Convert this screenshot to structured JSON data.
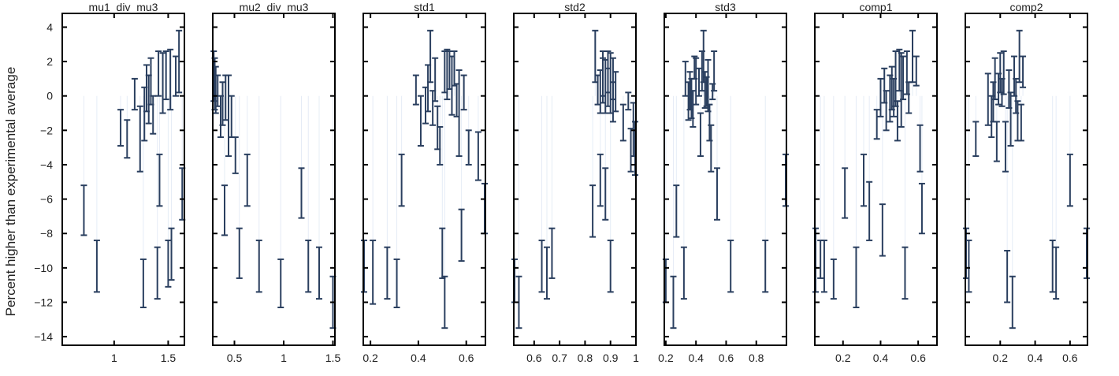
{
  "chart_data": {
    "type": "errorbar_panels",
    "ylabel": "Percent higher than experimental average",
    "ylim": [
      -14.5,
      4.8
    ],
    "yticks": [
      4,
      2,
      0,
      -2,
      -4,
      -6,
      -8,
      -10,
      -12,
      -14
    ],
    "ytick_labels": [
      "4",
      "2",
      "0",
      "−2",
      "−4",
      "−6",
      "−8",
      "−10",
      "−12",
      "−14"
    ],
    "grid": false,
    "bar_color": "#2a3f5f",
    "stem_color": "#e5ecf6",
    "panels": [
      {
        "title": "mu1_div_mu3",
        "xlim": [
          0.52,
          1.65
        ],
        "xticks": [
          1,
          1.5
        ],
        "xtick_labels": [
          "1",
          "1.5"
        ],
        "bars": [
          {
            "x": 0.72,
            "low": -8.1,
            "high": -5.2
          },
          {
            "x": 0.84,
            "low": -11.4,
            "high": -8.4
          },
          {
            "x": 1.06,
            "low": -2.9,
            "high": -0.8
          },
          {
            "x": 1.12,
            "low": -3.6,
            "high": -1.4
          },
          {
            "x": 1.19,
            "low": -0.8,
            "high": 1.0
          },
          {
            "x": 1.24,
            "low": -4.4,
            "high": -0.6
          },
          {
            "x": 1.27,
            "low": -12.3,
            "high": -9.5
          },
          {
            "x": 1.28,
            "low": -2.6,
            "high": 0.5
          },
          {
            "x": 1.3,
            "low": -0.9,
            "high": 1.8
          },
          {
            "x": 1.32,
            "low": -1.6,
            "high": 1.2
          },
          {
            "x": 1.34,
            "low": -0.5,
            "high": 2.2
          },
          {
            "x": 1.36,
            "low": -2.2,
            "high": 0.0
          },
          {
            "x": 1.4,
            "low": -11.8,
            "high": -8.8
          },
          {
            "x": 1.42,
            "low": -6.4,
            "high": -3.4
          },
          {
            "x": 1.41,
            "low": 0.0,
            "high": 2.6
          },
          {
            "x": 1.45,
            "low": -1.0,
            "high": 2.5
          },
          {
            "x": 1.48,
            "low": -0.2,
            "high": 2.6
          },
          {
            "x": 1.5,
            "low": -11.1,
            "high": -8.4
          },
          {
            "x": 1.52,
            "low": -0.8,
            "high": 2.7
          },
          {
            "x": 1.53,
            "low": -10.7,
            "high": -7.7
          },
          {
            "x": 1.57,
            "low": 0.0,
            "high": 2.3
          },
          {
            "x": 1.6,
            "low": 0.2,
            "high": 3.8
          },
          {
            "x": 1.63,
            "low": -7.2,
            "high": -4.2
          }
        ]
      },
      {
        "title": "mu2_div_mu3",
        "xlim": [
          0.28,
          1.52
        ],
        "xticks": [
          0.5,
          1,
          1.5
        ],
        "xtick_labels": [
          "0.5",
          "1",
          "1.5"
        ],
        "bars": [
          {
            "x": 0.29,
            "low": -0.3,
            "high": 2.6
          },
          {
            "x": 0.3,
            "low": -0.8,
            "high": 2.2
          },
          {
            "x": 0.31,
            "low": -1.0,
            "high": 1.7
          },
          {
            "x": 0.33,
            "low": -0.6,
            "high": 1.2
          },
          {
            "x": 0.36,
            "low": -2.4,
            "high": 0.0
          },
          {
            "x": 0.38,
            "low": -1.7,
            "high": 0.8
          },
          {
            "x": 0.4,
            "low": -8.1,
            "high": -5.2
          },
          {
            "x": 0.41,
            "low": -1.4,
            "high": 1.2
          },
          {
            "x": 0.44,
            "low": -3.5,
            "high": 1.2
          },
          {
            "x": 0.47,
            "low": -2.4,
            "high": 0.0
          },
          {
            "x": 0.51,
            "low": -4.5,
            "high": -2.4
          },
          {
            "x": 0.55,
            "low": -10.6,
            "high": -7.7
          },
          {
            "x": 0.63,
            "low": -6.4,
            "high": -3.4
          },
          {
            "x": 0.75,
            "low": -11.4,
            "high": -8.4
          },
          {
            "x": 0.97,
            "low": -12.3,
            "high": -9.5
          },
          {
            "x": 1.18,
            "low": -7.1,
            "high": -4.2
          },
          {
            "x": 1.25,
            "low": -11.4,
            "high": -8.4
          },
          {
            "x": 1.36,
            "low": -11.8,
            "high": -8.8
          },
          {
            "x": 1.5,
            "low": -13.5,
            "high": -10.5
          }
        ]
      },
      {
        "title": "std1",
        "xlim": [
          0.17,
          0.68
        ],
        "xticks": [
          0.2,
          0.4,
          0.6
        ],
        "xtick_labels": [
          "0.2",
          "0.4",
          "0.6"
        ],
        "bars": [
          {
            "x": 0.17,
            "low": -11.4,
            "high": -8.4
          },
          {
            "x": 0.21,
            "low": -12.1,
            "high": -8.4
          },
          {
            "x": 0.27,
            "low": -11.8,
            "high": -8.8
          },
          {
            "x": 0.31,
            "low": -12.3,
            "high": -9.5
          },
          {
            "x": 0.33,
            "low": -6.4,
            "high": -3.4
          },
          {
            "x": 0.39,
            "low": -0.5,
            "high": 1.2
          },
          {
            "x": 0.41,
            "low": -2.9,
            "high": 0.0
          },
          {
            "x": 0.43,
            "low": -1.6,
            "high": 0.5
          },
          {
            "x": 0.44,
            "low": -0.9,
            "high": 1.8
          },
          {
            "x": 0.45,
            "low": 0.8,
            "high": 3.8
          },
          {
            "x": 0.46,
            "low": -1.7,
            "high": 0.3
          },
          {
            "x": 0.47,
            "low": -0.3,
            "high": 2.2
          },
          {
            "x": 0.48,
            "low": -3.1,
            "high": -0.6
          },
          {
            "x": 0.49,
            "low": -4.0,
            "high": -1.8
          },
          {
            "x": 0.5,
            "low": -10.6,
            "high": -7.7
          },
          {
            "x": 0.51,
            "low": -13.5,
            "high": -10.5
          },
          {
            "x": 0.51,
            "low": 0.2,
            "high": 2.6
          },
          {
            "x": 0.52,
            "low": -0.2,
            "high": 2.7
          },
          {
            "x": 0.53,
            "low": 0.4,
            "high": 2.6
          },
          {
            "x": 0.54,
            "low": -1.1,
            "high": 2.3
          },
          {
            "x": 0.55,
            "low": 0.6,
            "high": 2.6
          },
          {
            "x": 0.56,
            "low": -1.2,
            "high": 0.7
          },
          {
            "x": 0.57,
            "low": -3.5,
            "high": 1.5
          },
          {
            "x": 0.58,
            "low": -9.6,
            "high": -6.6
          },
          {
            "x": 0.59,
            "low": -0.8,
            "high": 1.2
          },
          {
            "x": 0.61,
            "low": -4.0,
            "high": -2.0
          },
          {
            "x": 0.65,
            "low": -4.9,
            "high": -2.1
          },
          {
            "x": 0.68,
            "low": -8.0,
            "high": -5.1
          }
        ]
      },
      {
        "title": "std2",
        "xlim": [
          0.52,
          1.0
        ],
        "xticks": [
          0.6,
          0.7,
          0.8,
          0.9,
          1
        ],
        "xtick_labels": [
          "0.6",
          "0.7",
          "0.8",
          "0.9",
          "1"
        ],
        "bars": [
          {
            "x": 0.52,
            "low": -12.0,
            "high": -9.5
          },
          {
            "x": 0.54,
            "low": -13.5,
            "high": -10.5
          },
          {
            "x": 0.63,
            "low": -11.4,
            "high": -8.4
          },
          {
            "x": 0.65,
            "low": -11.8,
            "high": -8.8
          },
          {
            "x": 0.67,
            "low": -10.6,
            "high": -7.7
          },
          {
            "x": 0.83,
            "low": -8.2,
            "high": -5.2
          },
          {
            "x": 0.84,
            "low": 0.8,
            "high": 3.8
          },
          {
            "x": 0.85,
            "low": -0.5,
            "high": 1.2
          },
          {
            "x": 0.86,
            "low": -1.0,
            "high": 1.5
          },
          {
            "x": 0.86,
            "low": -6.4,
            "high": -3.4
          },
          {
            "x": 0.87,
            "low": -0.4,
            "high": 2.2
          },
          {
            "x": 0.87,
            "low": 0.0,
            "high": 2.6
          },
          {
            "x": 0.88,
            "low": -1.0,
            "high": 2.1
          },
          {
            "x": 0.88,
            "low": -7.2,
            "high": -4.2
          },
          {
            "x": 0.89,
            "low": 0.2,
            "high": 2.6
          },
          {
            "x": 0.89,
            "low": -0.6,
            "high": 1.6
          },
          {
            "x": 0.9,
            "low": -11.4,
            "high": -8.4
          },
          {
            "x": 0.9,
            "low": -1.0,
            "high": 2.5
          },
          {
            "x": 0.91,
            "low": -0.2,
            "high": 2.2
          },
          {
            "x": 0.91,
            "low": -1.5,
            "high": 0.8
          },
          {
            "x": 0.92,
            "low": -0.9,
            "high": 1.4
          },
          {
            "x": 0.95,
            "low": -2.6,
            "high": -0.5
          },
          {
            "x": 0.97,
            "low": -0.8,
            "high": 0.2
          },
          {
            "x": 0.98,
            "low": -4.4,
            "high": -1.9
          },
          {
            "x": 0.99,
            "low": -3.5,
            "high": -0.4
          },
          {
            "x": 1.0,
            "low": -4.6,
            "high": -1.5
          }
        ]
      },
      {
        "title": "std3",
        "xlim": [
          0.19,
          1.0
        ],
        "xticks": [
          0.2,
          0.4,
          0.6,
          0.8
        ],
        "xtick_labels": [
          "0.2",
          "0.4",
          "0.6",
          "0.8"
        ],
        "bars": [
          {
            "x": 0.2,
            "low": -12.0,
            "high": -9.5
          },
          {
            "x": 0.25,
            "low": -13.5,
            "high": -10.5
          },
          {
            "x": 0.27,
            "low": -8.2,
            "high": -5.2
          },
          {
            "x": 0.32,
            "low": -11.8,
            "high": -8.8
          },
          {
            "x": 0.33,
            "low": 0.0,
            "high": 2.0
          },
          {
            "x": 0.35,
            "low": -1.4,
            "high": 0.8
          },
          {
            "x": 0.36,
            "low": -0.8,
            "high": 1.4
          },
          {
            "x": 0.37,
            "low": -1.3,
            "high": 1.0
          },
          {
            "x": 0.38,
            "low": -1.8,
            "high": 0.3
          },
          {
            "x": 0.39,
            "low": 1.0,
            "high": 2.3
          },
          {
            "x": 0.4,
            "low": -0.5,
            "high": 2.2
          },
          {
            "x": 0.42,
            "low": 0.0,
            "high": 1.6
          },
          {
            "x": 0.43,
            "low": -3.5,
            "high": -1.0
          },
          {
            "x": 0.44,
            "low": 0.3,
            "high": 2.6
          },
          {
            "x": 0.45,
            "low": 0.8,
            "high": 3.8
          },
          {
            "x": 0.46,
            "low": -0.7,
            "high": 1.4
          },
          {
            "x": 0.47,
            "low": -0.6,
            "high": 1.1
          },
          {
            "x": 0.48,
            "low": -0.9,
            "high": 2.1
          },
          {
            "x": 0.49,
            "low": -2.6,
            "high": -0.5
          },
          {
            "x": 0.5,
            "low": -4.4,
            "high": -1.7
          },
          {
            "x": 0.51,
            "low": -0.2,
            "high": 0.7
          },
          {
            "x": 0.52,
            "low": 0.3,
            "high": 2.6
          },
          {
            "x": 0.54,
            "low": -7.2,
            "high": -4.2
          },
          {
            "x": 0.63,
            "low": -11.4,
            "high": -8.4
          },
          {
            "x": 0.86,
            "low": -11.4,
            "high": -8.4
          },
          {
            "x": 1.0,
            "low": -6.4,
            "high": -3.4
          }
        ]
      },
      {
        "title": "comp1",
        "xlim": [
          0.05,
          0.7
        ],
        "xticks": [
          0.2,
          0.4,
          0.6
        ],
        "xtick_labels": [
          "0.2",
          "0.4",
          "0.6"
        ],
        "bars": [
          {
            "x": 0.05,
            "low": -11.4,
            "high": -7.7
          },
          {
            "x": 0.08,
            "low": -10.6,
            "high": -8.4
          },
          {
            "x": 0.1,
            "low": -11.4,
            "high": -8.4
          },
          {
            "x": 0.15,
            "low": -11.8,
            "high": -9.5
          },
          {
            "x": 0.21,
            "low": -7.1,
            "high": -4.2
          },
          {
            "x": 0.27,
            "low": -12.3,
            "high": -8.8
          },
          {
            "x": 0.31,
            "low": -6.4,
            "high": -3.4
          },
          {
            "x": 0.34,
            "low": -8.4,
            "high": -5.0
          },
          {
            "x": 0.38,
            "low": -2.5,
            "high": -0.8
          },
          {
            "x": 0.4,
            "low": -1.2,
            "high": 1.0
          },
          {
            "x": 0.41,
            "low": -9.3,
            "high": -6.3
          },
          {
            "x": 0.42,
            "low": -0.4,
            "high": 1.6
          },
          {
            "x": 0.43,
            "low": -2.0,
            "high": 0.3
          },
          {
            "x": 0.45,
            "low": -1.5,
            "high": 1.2
          },
          {
            "x": 0.46,
            "low": -0.8,
            "high": 1.7
          },
          {
            "x": 0.47,
            "low": -1.2,
            "high": 1.0
          },
          {
            "x": 0.48,
            "low": -0.6,
            "high": 2.6
          },
          {
            "x": 0.49,
            "low": -2.6,
            "high": -0.3
          },
          {
            "x": 0.5,
            "low": 0.3,
            "high": 2.7
          },
          {
            "x": 0.51,
            "low": -1.8,
            "high": 2.5
          },
          {
            "x": 0.52,
            "low": -0.2,
            "high": 2.3
          },
          {
            "x": 0.53,
            "low": -11.8,
            "high": -8.8
          },
          {
            "x": 0.54,
            "low": 0.1,
            "high": 2.6
          },
          {
            "x": 0.55,
            "low": -1.0,
            "high": 0.8
          },
          {
            "x": 0.57,
            "low": 0.8,
            "high": 3.8
          },
          {
            "x": 0.59,
            "low": 0.6,
            "high": 2.3
          },
          {
            "x": 0.61,
            "low": -4.4,
            "high": -1.7
          },
          {
            "x": 0.62,
            "low": -8.0,
            "high": -5.1
          }
        ]
      },
      {
        "title": "comp2",
        "xlim": [
          0.0,
          0.7
        ],
        "xticks": [
          0.2,
          0.4,
          0.6
        ],
        "xtick_labels": [
          "0.2",
          "0.4",
          "0.6"
        ],
        "bars": [
          {
            "x": 0.0,
            "low": -10.6,
            "high": -7.7
          },
          {
            "x": 0.02,
            "low": -11.4,
            "high": -8.4
          },
          {
            "x": 0.06,
            "low": -3.5,
            "high": -1.5
          },
          {
            "x": 0.13,
            "low": -1.7,
            "high": 1.3
          },
          {
            "x": 0.15,
            "low": -2.4,
            "high": 0.0
          },
          {
            "x": 0.16,
            "low": -1.5,
            "high": 0.8
          },
          {
            "x": 0.17,
            "low": -0.2,
            "high": 2.2
          },
          {
            "x": 0.18,
            "low": -3.8,
            "high": -1.5
          },
          {
            "x": 0.19,
            "low": -0.5,
            "high": 1.3
          },
          {
            "x": 0.2,
            "low": 0.2,
            "high": 2.5
          },
          {
            "x": 0.21,
            "low": -0.6,
            "high": 1.0
          },
          {
            "x": 0.22,
            "low": 0.1,
            "high": 2.6
          },
          {
            "x": 0.23,
            "low": -4.4,
            "high": -1.5
          },
          {
            "x": 0.24,
            "low": -12.0,
            "high": -9.0
          },
          {
            "x": 0.25,
            "low": -0.7,
            "high": 1.5
          },
          {
            "x": 0.26,
            "low": -2.9,
            "high": 0.2
          },
          {
            "x": 0.27,
            "low": -13.5,
            "high": -10.5
          },
          {
            "x": 0.28,
            "low": 0.0,
            "high": 2.3
          },
          {
            "x": 0.29,
            "low": -1.0,
            "high": 1.0
          },
          {
            "x": 0.3,
            "low": -2.6,
            "high": -0.3
          },
          {
            "x": 0.31,
            "low": 0.8,
            "high": 3.8
          },
          {
            "x": 0.32,
            "low": -2.6,
            "high": -0.5
          },
          {
            "x": 0.33,
            "low": 0.5,
            "high": 2.3
          },
          {
            "x": 0.5,
            "low": -11.4,
            "high": -8.4
          },
          {
            "x": 0.52,
            "low": -11.8,
            "high": -8.8
          },
          {
            "x": 0.6,
            "low": -6.4,
            "high": -3.4
          },
          {
            "x": 0.7,
            "low": -10.6,
            "high": -7.7
          }
        ]
      }
    ]
  }
}
